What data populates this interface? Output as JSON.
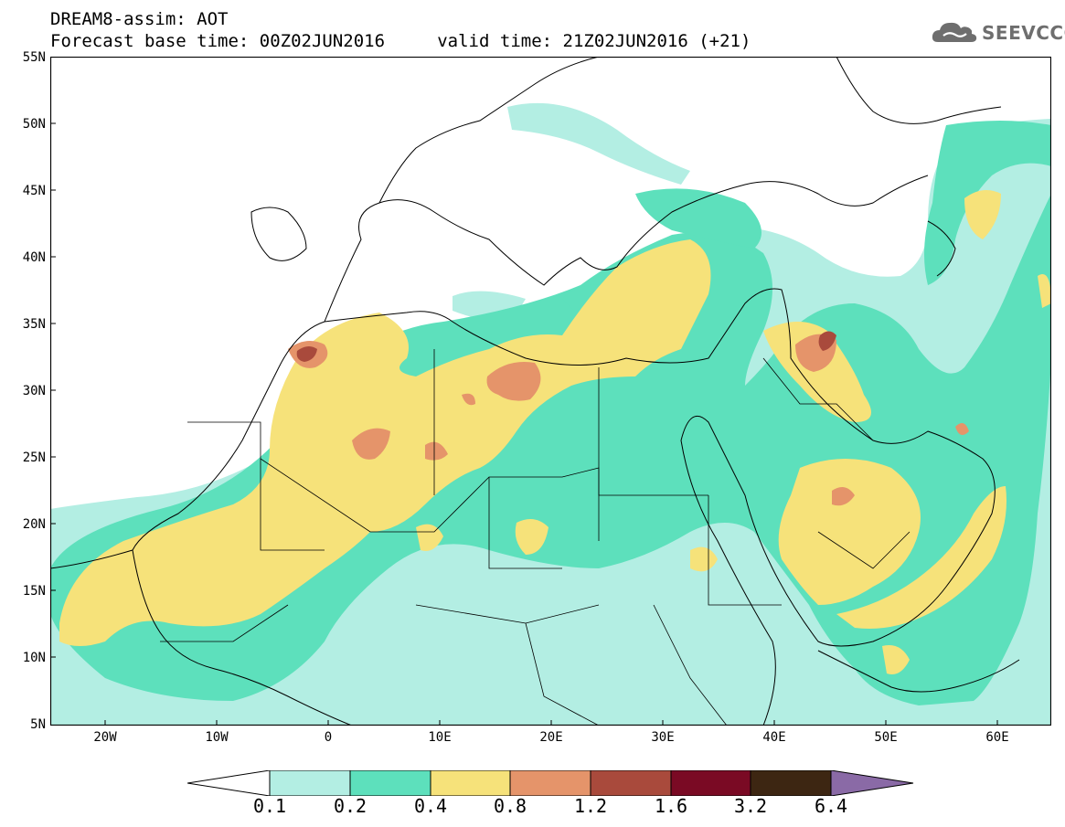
{
  "header": {
    "line1": "DREAM8-assim: AOT",
    "line2": "Forecast base time: 00Z02JUN2016     valid time: 21Z02JUN2016 (+21)"
  },
  "logo": {
    "text": "SEEVCCC",
    "icon": "cloud-icon"
  },
  "map": {
    "lat_labels": [
      "55N",
      "50N",
      "45N",
      "40N",
      "35N",
      "30N",
      "25N",
      "20N",
      "15N",
      "10N",
      "5N"
    ],
    "lon_labels": [
      "20W",
      "10W",
      "0",
      "10E",
      "20E",
      "30E",
      "40E",
      "50E",
      "60E"
    ],
    "extent": {
      "lon": [
        -25,
        65
      ],
      "lat": [
        5,
        55
      ]
    }
  },
  "colorbar": {
    "labels": [
      "0.1",
      "0.2",
      "0.4",
      "0.8",
      "1.2",
      "1.6",
      "3.2",
      "6.4"
    ],
    "colors": [
      "#ffffff",
      "#b3eee3",
      "#5de0bc",
      "#f6e27a",
      "#e5946a",
      "#a94a3c",
      "#7a0a24",
      "#3d2612",
      "#8a6aa6"
    ]
  }
}
